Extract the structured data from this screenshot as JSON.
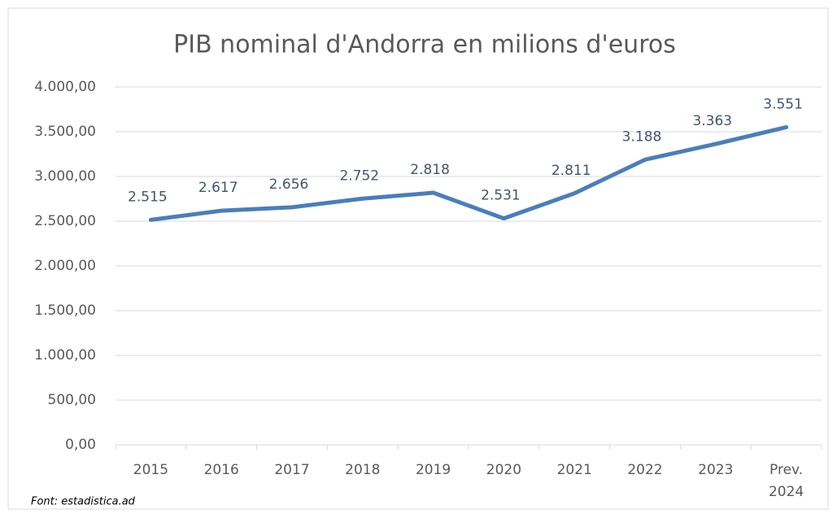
{
  "chart_data": {
    "type": "line",
    "title": "PIB nominal d'Andorra en milions d'euros",
    "categories": [
      "2015",
      "2016",
      "2017",
      "2018",
      "2019",
      "2020",
      "2021",
      "2022",
      "2023",
      "Prev. 2024"
    ],
    "series": [
      {
        "name": "PIB nominal",
        "color": "#4a7ebb",
        "values": [
          2515,
          2617,
          2656,
          2752,
          2818,
          2531,
          2811,
          3188,
          3363,
          3551
        ],
        "value_labels": [
          "2.515",
          "2.617",
          "2.656",
          "2.752",
          "2.818",
          "2.531",
          "2.811",
          "3.188",
          "3.363",
          "3.551"
        ]
      }
    ],
    "ylim": [
      0,
      4000
    ],
    "yticks": [
      {
        "value": 0,
        "label": "0,00"
      },
      {
        "value": 500,
        "label": "500,00"
      },
      {
        "value": 1000,
        "label": "1.000,00"
      },
      {
        "value": 1500,
        "label": "1.500,00"
      },
      {
        "value": 2000,
        "label": "2.000,00"
      },
      {
        "value": 2500,
        "label": "2.500,00"
      },
      {
        "value": 3000,
        "label": "3.000,00"
      },
      {
        "value": 3500,
        "label": "3.500,00"
      },
      {
        "value": 4000,
        "label": "4.000,00"
      }
    ],
    "grid": true,
    "annotations": [
      "Font: estadistica.ad"
    ]
  }
}
